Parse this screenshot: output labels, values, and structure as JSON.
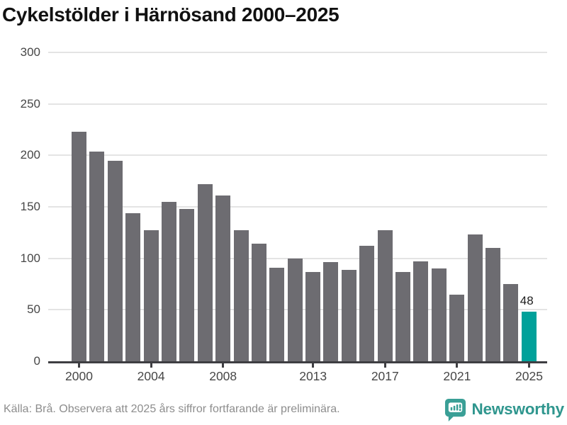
{
  "title": "Cykelstölder i Härnösand 2000–2025",
  "footer": {
    "source_note": "Källa: Brå. Observera att 2025 års siffror fortfarande är preliminära.",
    "brand_name": "Newsworthy",
    "brand_icon": "newsworthy-speech-bubble-bar-chart-icon"
  },
  "colors": {
    "bar": "#6d6c71",
    "highlight": "#00a19a",
    "grid": "#e4e4e4",
    "axis": "#3e3e42",
    "axis_label": "#474747",
    "title_text": "#111111",
    "footer_text": "#8d8d8d",
    "brand_teal": "#2f968e",
    "background": "#ffffff"
  },
  "chart_data": {
    "type": "bar",
    "title": "Cykelstölder i Härnösand 2000–2025",
    "categories": [
      "2000",
      "2001",
      "2002",
      "2003",
      "2004",
      "2005",
      "2006",
      "2007",
      "2008",
      "2009",
      "2010",
      "2011",
      "2012",
      "2013",
      "2014",
      "2015",
      "2016",
      "2017",
      "2018",
      "2019",
      "2020",
      "2021",
      "2022",
      "2023",
      "2024",
      "2025"
    ],
    "values": [
      223,
      204,
      195,
      144,
      127,
      155,
      148,
      172,
      161,
      127,
      114,
      91,
      100,
      87,
      96,
      89,
      112,
      127,
      87,
      97,
      90,
      65,
      123,
      110,
      75,
      48
    ],
    "highlight": {
      "category": "2025",
      "value": 48,
      "label": "48"
    },
    "x_tick_labels": [
      "2000",
      "2004",
      "2008",
      "2013",
      "2017",
      "2021",
      "2025"
    ],
    "y_ticks": [
      0,
      50,
      100,
      150,
      200,
      250,
      300
    ],
    "ylim": [
      0,
      300
    ],
    "xlabel": "",
    "ylabel": "",
    "grid": "horizontal-light",
    "legend_position": "none"
  }
}
